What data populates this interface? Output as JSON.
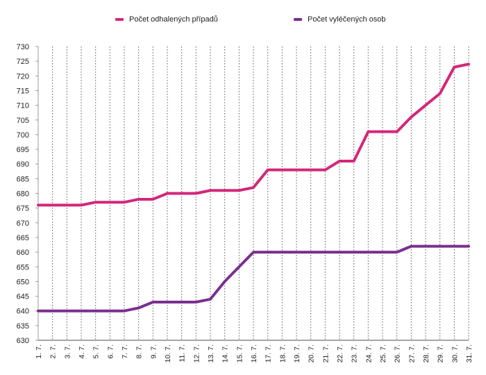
{
  "chart_data": {
    "type": "line",
    "title": "",
    "xlabel": "",
    "ylabel": "",
    "ylim": [
      630,
      730
    ],
    "ytick_step": 5,
    "grid": {
      "vertical": "dotted",
      "horizontal": false
    },
    "legend_position": "top-center",
    "categories": [
      "1. 7.",
      "2. 7.",
      "3. 7.",
      "4. 7.",
      "5. 7.",
      "6. 7.",
      "7. 7.",
      "8. 7.",
      "9. 7.",
      "10. 7.",
      "11. 7.",
      "12. 7.",
      "13. 7.",
      "14. 7.",
      "15. 7.",
      "16. 7.",
      "17. 7.",
      "18. 7.",
      "19. 7.",
      "20. 7.",
      "21. 7.",
      "22. 7.",
      "23. 7.",
      "24. 7.",
      "25. 7.",
      "26. 7.",
      "27. 7.",
      "28. 7.",
      "29. 7.",
      "30. 7.",
      "31. 7."
    ],
    "series": [
      {
        "name": "Počet odhalených případů",
        "color": "#d4267a",
        "values": [
          676,
          676,
          676,
          676,
          677,
          677,
          677,
          678,
          678,
          680,
          680,
          680,
          681,
          681,
          681,
          682,
          688,
          688,
          688,
          688,
          688,
          691,
          691,
          701,
          701,
          701,
          706,
          710,
          714,
          723,
          724
        ]
      },
      {
        "name": "Počet vyléčených osob",
        "color": "#7b2e8e",
        "values": [
          640,
          640,
          640,
          640,
          640,
          640,
          640,
          641,
          643,
          643,
          643,
          643,
          644,
          650,
          655,
          660,
          660,
          660,
          660,
          660,
          660,
          660,
          660,
          660,
          660,
          660,
          662,
          662,
          662,
          662,
          662
        ]
      }
    ]
  }
}
